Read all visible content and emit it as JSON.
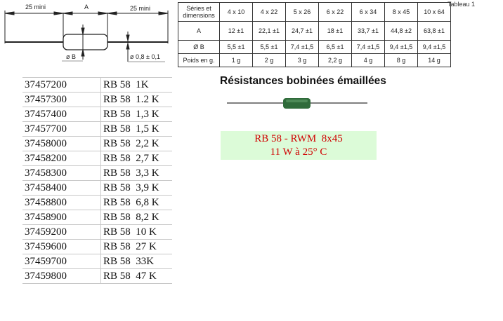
{
  "diagram": {
    "left_len": "25 mini",
    "a_label": "A",
    "right_len": "25 mini",
    "diam_b": "ø B",
    "wire_diam": "ø 0,8 ± 0,1"
  },
  "spec_table": {
    "corner_text": "Tableau 1",
    "headers": [
      "Séries et dimensions",
      "4 x 10",
      "4 x 22",
      "5 x 26",
      "6 x 22",
      "6 x 34",
      "8 x 45",
      "10 x 64"
    ],
    "rows": [
      [
        "A",
        "12 ±1",
        "22,1 ±1",
        "24,7 ±1",
        "18 ±1",
        "33,7 ±1",
        "44,8 ±2",
        "63,8 ±1"
      ],
      [
        "Ø B",
        "5,5 ±1",
        "5,5 ±1",
        "7,4 ±1,5",
        "6,5 ±1",
        "7,4 ±1,5",
        "9,4 ±1,5",
        "9,4 ±1,5"
      ],
      [
        "Poids en g.",
        "1 g",
        "2 g",
        "3 g",
        "2,2 g",
        "4 g",
        "8 g",
        "14 g"
      ]
    ]
  },
  "products": [
    [
      "37457200",
      "RB 58  1K"
    ],
    [
      "37457300",
      "RB 58  1.2 K"
    ],
    [
      "37457400",
      "RB 58  1,3 K"
    ],
    [
      "37457700",
      "RB 58  1,5 K"
    ],
    [
      "37458000",
      "RB 58  2,2 K"
    ],
    [
      "37458200",
      "RB 58  2,7 K"
    ],
    [
      "37458300",
      "RB 58  3,3 K"
    ],
    [
      "37458400",
      "RB 58  3,9 K"
    ],
    [
      "37458800",
      "RB 58  6,8 K"
    ],
    [
      "37458900",
      "RB 58  8,2 K"
    ],
    [
      "37459200",
      "RB 58  10 K"
    ],
    [
      "37459600",
      "RB 58  27 K"
    ],
    [
      "37459700",
      "RB 58  33K"
    ],
    [
      "37459800",
      "RB 58  47 K"
    ]
  ],
  "title": "Résistances bobinées émaillées",
  "info_box": {
    "line1": "RB 58 - RWM  8x45",
    "line2": "11 W à 25° C",
    "background": "#dcfbd8",
    "text_color": "#d00000"
  }
}
